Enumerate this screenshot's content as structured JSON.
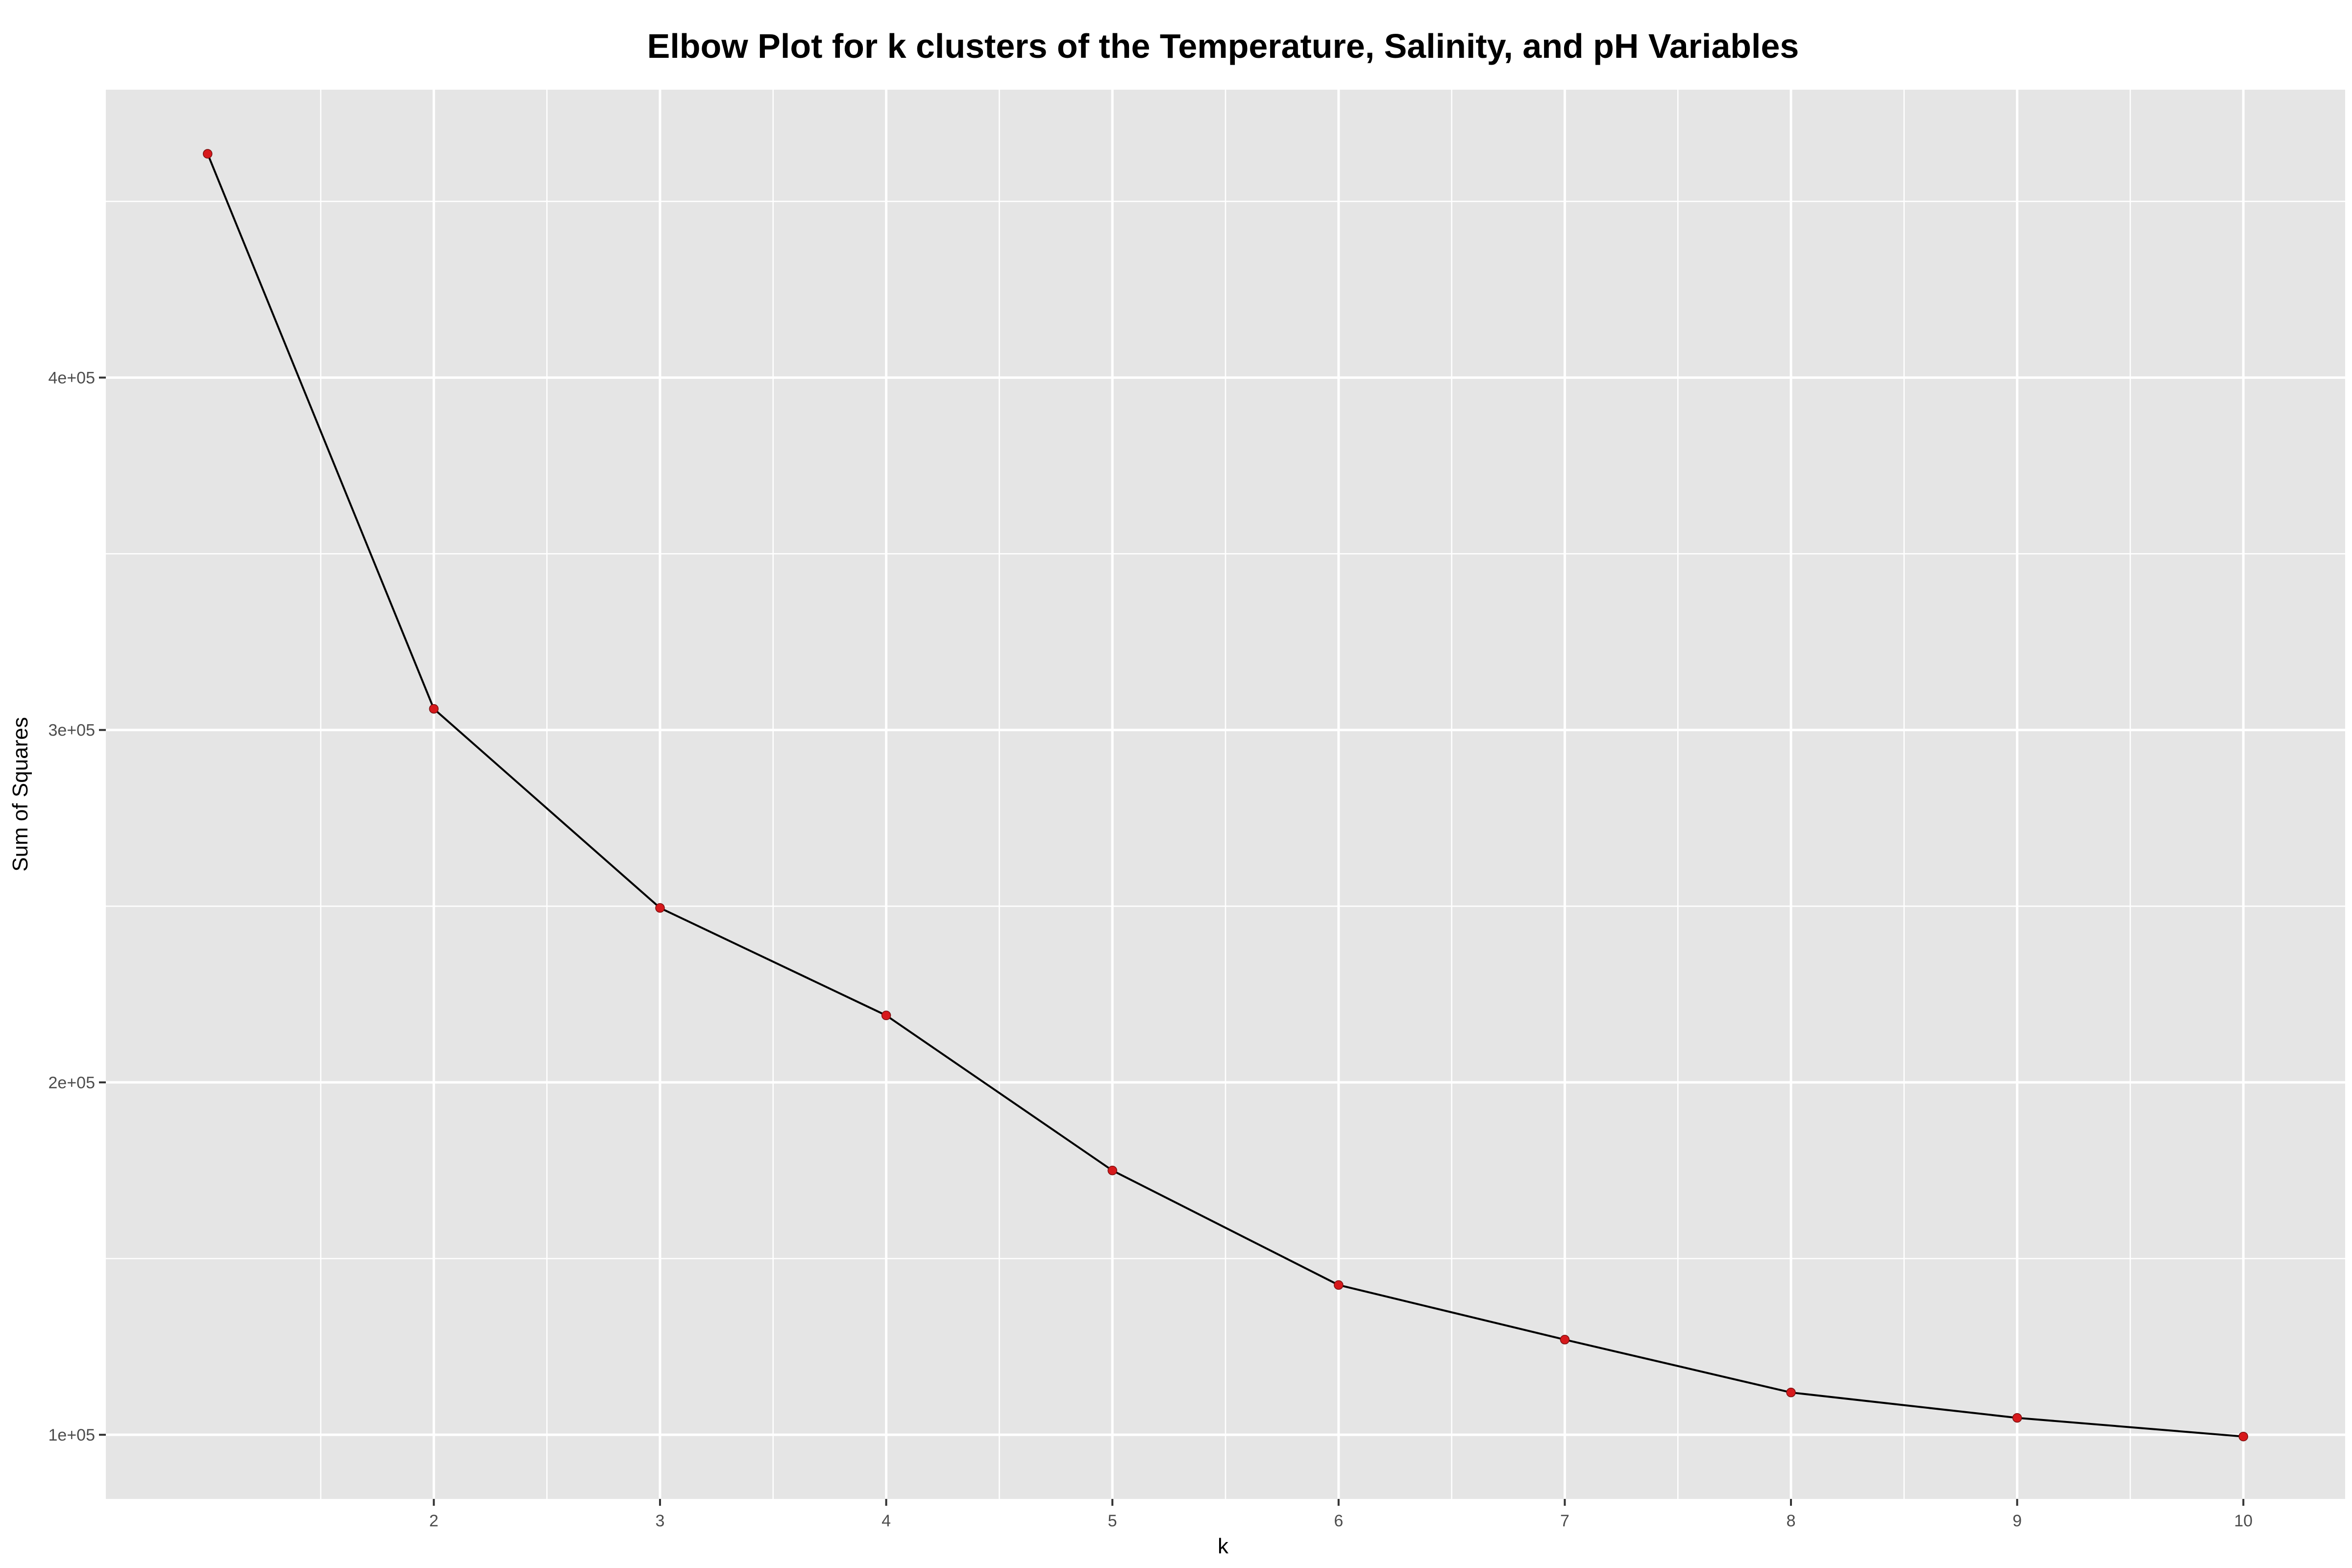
{
  "chart_data": {
    "type": "line",
    "title": "Elbow Plot for k clusters of the Temperature, Salinity, and pH Variables",
    "xlabel": "k",
    "ylabel": "Sum of Squares",
    "x": [
      1,
      2,
      3,
      4,
      5,
      6,
      7,
      8,
      9,
      10
    ],
    "series": [
      {
        "values": [
          463500,
          306000,
          249500,
          219000,
          175000,
          142500,
          127000,
          112000,
          104800,
          99500
        ]
      }
    ],
    "x_ticks": [
      2,
      3,
      4,
      5,
      6,
      7,
      8,
      9,
      10
    ],
    "x_tick_labels": [
      "2",
      "3",
      "4",
      "5",
      "6",
      "7",
      "8",
      "9",
      "10"
    ],
    "y_ticks": [
      100000,
      200000,
      300000,
      400000
    ],
    "y_tick_labels": [
      "1e+05",
      "2e+05",
      "3e+05",
      "4e+05"
    ],
    "xlim": [
      0.55,
      10.45
    ],
    "ylim": [
      81800,
      481700
    ],
    "grid": true,
    "colors": {
      "panel": "#e5e5e5",
      "grid": "#ffffff",
      "line": "#000000",
      "point": "#d7191c"
    }
  }
}
